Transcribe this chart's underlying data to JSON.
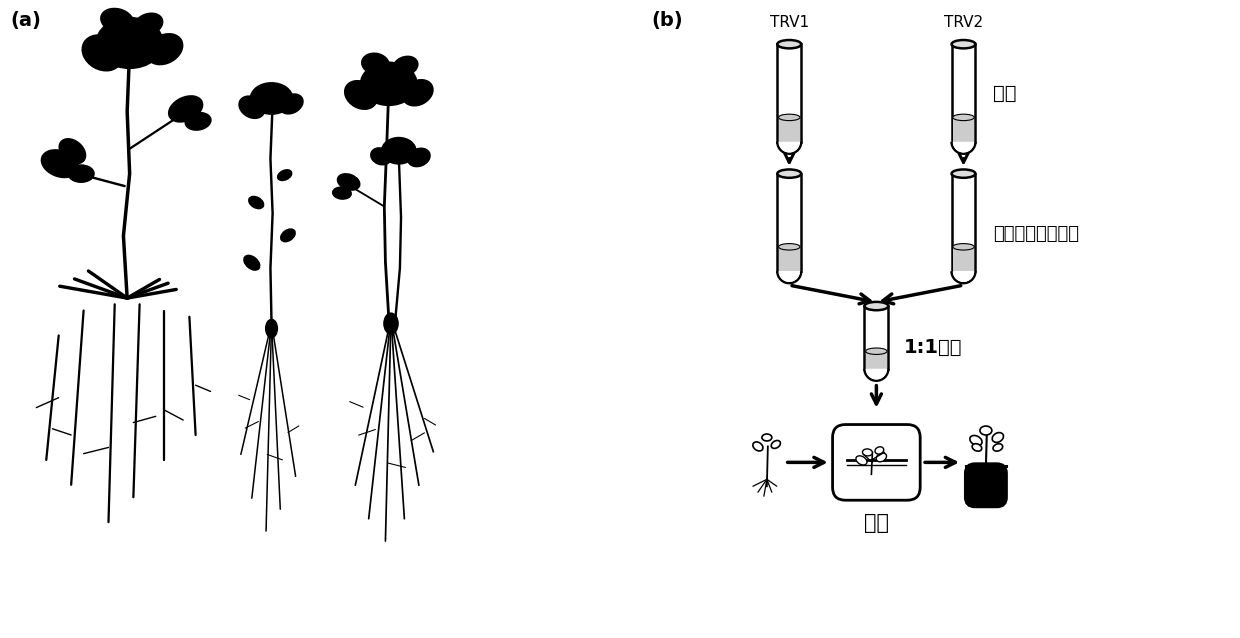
{
  "fig_width": 12.4,
  "fig_height": 6.38,
  "dpi": 100,
  "bg_color": "#ffffff",
  "label_a": "(a)",
  "label_b": "(b)",
  "trv1_label": "TRV1",
  "trv2_label": "TRV2",
  "step1_label": "培养",
  "step2_label": "侵染缓冲液重悬浮",
  "step3_label": "1:1混合",
  "step4_label": "真空",
  "text_color": "#000000",
  "font_size_label": 14,
  "font_size_step": 12,
  "font_size_trv": 11
}
